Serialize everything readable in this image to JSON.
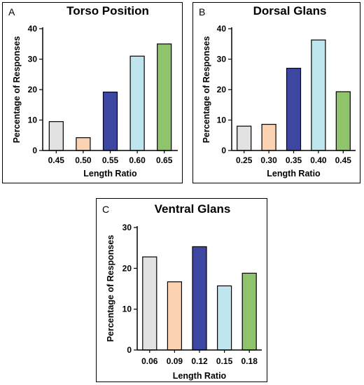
{
  "chart_data": [
    {
      "panel_label": "A",
      "type": "bar",
      "title": "Torso Position",
      "xlabel": "Length Ratio",
      "ylabel": "Percentage of  Responses",
      "categories": [
        "0.45",
        "0.50",
        "0.55",
        "0.60",
        "0.65"
      ],
      "values": [
        9.5,
        4.2,
        19.2,
        31.0,
        35.0
      ],
      "ylim": [
        0,
        40
      ],
      "yticks": [
        "0",
        "10",
        "20",
        "30",
        "40"
      ],
      "colors": [
        "#e2e2e2",
        "#fbd3b2",
        "#3d46a0",
        "#bfe5ee",
        "#8fc46d"
      ]
    },
    {
      "panel_label": "B",
      "type": "bar",
      "title": "Dorsal Glans",
      "xlabel": "Length Ratio",
      "ylabel": "Percentage of  Responses",
      "categories": [
        "0.25",
        "0.30",
        "0.35",
        "0.40",
        "0.45"
      ],
      "values": [
        8.0,
        8.6,
        27.0,
        36.3,
        19.3
      ],
      "ylim": [
        0,
        40
      ],
      "yticks": [
        "0",
        "10",
        "20",
        "30",
        "40"
      ],
      "colors": [
        "#e2e2e2",
        "#fbd3b2",
        "#3d46a0",
        "#bfe5ee",
        "#8fc46d"
      ]
    },
    {
      "panel_label": "C",
      "type": "bar",
      "title": "Ventral Glans",
      "xlabel": "Length Ratio",
      "ylabel": "Percentage of Responses",
      "categories": [
        "0.06",
        "0.09",
        "0.12",
        "0.15",
        "0.18"
      ],
      "values": [
        22.8,
        16.7,
        25.3,
        15.7,
        18.8
      ],
      "ylim": [
        0,
        30
      ],
      "yticks": [
        "0",
        "10",
        "20",
        "30"
      ],
      "colors": [
        "#e2e2e2",
        "#fbd3b2",
        "#3d46a0",
        "#bfe5ee",
        "#8fc46d"
      ]
    }
  ]
}
